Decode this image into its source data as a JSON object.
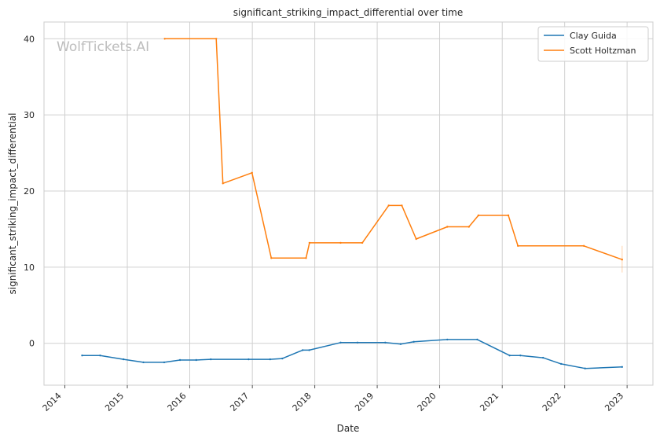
{
  "chart_data": {
    "type": "line",
    "title": "significant_striking_impact_differential over time",
    "xlabel": "Date",
    "ylabel": "significant_striking_impact_differential",
    "xlim": [
      "2013-09-01",
      "2023-06-01"
    ],
    "ylim": [
      -5.5,
      42.2
    ],
    "xticks": [
      {
        "date": "2014-01-01",
        "label": "2014"
      },
      {
        "date": "2015-01-01",
        "label": "2015"
      },
      {
        "date": "2016-01-01",
        "label": "2016"
      },
      {
        "date": "2017-01-01",
        "label": "2017"
      },
      {
        "date": "2018-01-01",
        "label": "2018"
      },
      {
        "date": "2019-01-01",
        "label": "2019"
      },
      {
        "date": "2020-01-01",
        "label": "2020"
      },
      {
        "date": "2021-01-01",
        "label": "2021"
      },
      {
        "date": "2022-01-01",
        "label": "2022"
      },
      {
        "date": "2023-01-01",
        "label": "2023"
      }
    ],
    "yticks": [
      {
        "value": 0,
        "label": "0"
      },
      {
        "value": 10,
        "label": "10"
      },
      {
        "value": 20,
        "label": "20"
      },
      {
        "value": 30,
        "label": "30"
      },
      {
        "value": 40,
        "label": "40"
      }
    ],
    "grid": true,
    "legend_position": "top-right",
    "watermark": "WolfTickets.AI",
    "series": [
      {
        "name": "Clay Guida",
        "color": "#1f77b4",
        "points": [
          {
            "x": "2014-04-12",
            "y": -1.6
          },
          {
            "x": "2014-07-26",
            "y": -1.6
          },
          {
            "x": "2014-12-10",
            "y": -2.1
          },
          {
            "x": "2015-04-05",
            "y": -2.5
          },
          {
            "x": "2015-08-05",
            "y": -2.5
          },
          {
            "x": "2015-11-05",
            "y": -2.2
          },
          {
            "x": "2016-02-08",
            "y": -2.2
          },
          {
            "x": "2016-05-03",
            "y": -2.1
          },
          {
            "x": "2016-12-10",
            "y": -2.1
          },
          {
            "x": "2017-04-15",
            "y": -2.1
          },
          {
            "x": "2017-06-25",
            "y": -2.0
          },
          {
            "x": "2017-10-22",
            "y": -0.9
          },
          {
            "x": "2017-11-30",
            "y": -0.9
          },
          {
            "x": "2018-06-01",
            "y": 0.1
          },
          {
            "x": "2018-09-08",
            "y": 0.1
          },
          {
            "x": "2019-02-17",
            "y": 0.1
          },
          {
            "x": "2019-05-18",
            "y": -0.1
          },
          {
            "x": "2019-08-03",
            "y": 0.2
          },
          {
            "x": "2020-02-15",
            "y": 0.5
          },
          {
            "x": "2020-08-08",
            "y": 0.5
          },
          {
            "x": "2021-02-13",
            "y": -1.6
          },
          {
            "x": "2021-04-17",
            "y": -1.6
          },
          {
            "x": "2021-08-28",
            "y": -1.9
          },
          {
            "x": "2021-12-11",
            "y": -2.7
          },
          {
            "x": "2022-04-30",
            "y": -3.3
          },
          {
            "x": "2022-12-03",
            "y": -3.1
          }
        ]
      },
      {
        "name": "Scott Holtzman",
        "color": "#ff7f0e",
        "points": [
          {
            "x": "2015-08-08",
            "y": 40.0
          },
          {
            "x": "2016-06-04",
            "y": 40.0
          },
          {
            "x": "2016-07-13",
            "y": 21.0
          },
          {
            "x": "2016-12-30",
            "y": 22.4
          },
          {
            "x": "2017-04-22",
            "y": 11.2
          },
          {
            "x": "2017-11-11",
            "y": 11.2
          },
          {
            "x": "2017-12-01",
            "y": 13.2
          },
          {
            "x": "2018-06-01",
            "y": 13.2
          },
          {
            "x": "2018-10-06",
            "y": 13.2
          },
          {
            "x": "2019-03-09",
            "y": 18.1
          },
          {
            "x": "2019-05-25",
            "y": 18.1
          },
          {
            "x": "2019-08-17",
            "y": 13.7
          },
          {
            "x": "2020-02-15",
            "y": 15.3
          },
          {
            "x": "2020-06-20",
            "y": 15.3
          },
          {
            "x": "2020-08-15",
            "y": 16.8
          },
          {
            "x": "2021-02-06",
            "y": 16.8
          },
          {
            "x": "2021-04-03",
            "y": 12.8
          },
          {
            "x": "2022-04-23",
            "y": 12.8
          },
          {
            "x": "2022-12-03",
            "y": 11.0
          }
        ],
        "error_bar": {
          "x": "2022-12-03",
          "low": 9.3,
          "high": 12.8
        }
      }
    ]
  }
}
